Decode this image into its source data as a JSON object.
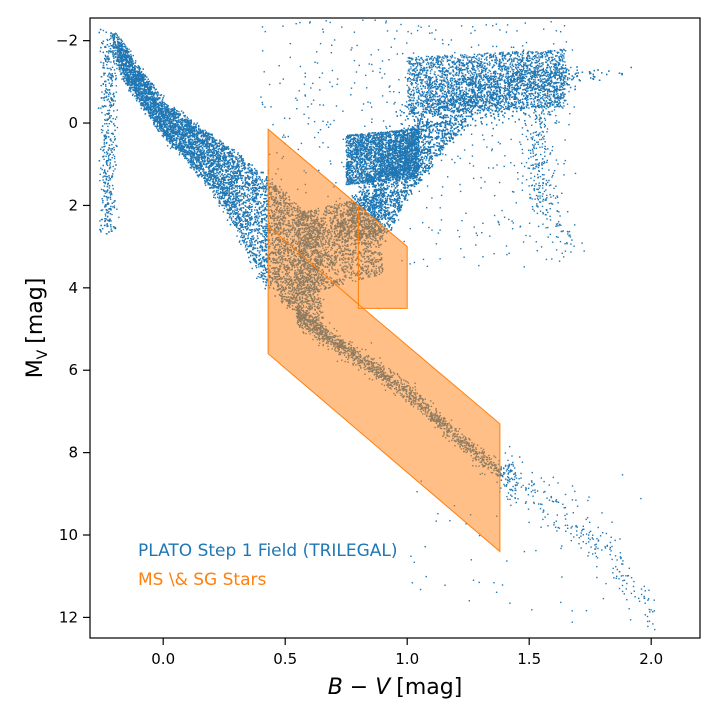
{
  "chart_data": {
    "type": "scatter",
    "xlabel": "B − V [mag]",
    "xlabel_italic": "B − V",
    "xlabel_unit": "[mag]",
    "ylabel_main": "M",
    "ylabel_sub": "V",
    "ylabel_unit": "[mag]",
    "xlim": [
      -0.3,
      2.2
    ],
    "ylim": [
      12.5,
      -2.55
    ],
    "y_inverted": true,
    "x_ticks": [
      0.0,
      0.5,
      1.0,
      1.5,
      2.0
    ],
    "x_tick_labels": [
      "0.0",
      "0.5",
      "1.0",
      "1.5",
      "2.0"
    ],
    "y_ticks": [
      -2,
      0,
      2,
      4,
      6,
      8,
      10,
      12
    ],
    "y_tick_labels": [
      "−2",
      "0",
      "2",
      "4",
      "6",
      "8",
      "10",
      "12"
    ],
    "grid": false,
    "legend_placement": "bottom-left",
    "colors": {
      "field": "#1f77b4",
      "selection": "#ff7f0e"
    },
    "legend": [
      {
        "label": "PLATO Step 1 Field (TRILEGAL)",
        "color": "#1f77b4"
      },
      {
        "label": "MS \\& SG Stars",
        "color": "#ff7f0e"
      }
    ],
    "selection_region": {
      "polygon": [
        [
          0.43,
          0.15
        ],
        [
          0.43,
          5.6
        ],
        [
          1.38,
          10.4
        ],
        [
          1.38,
          7.3
        ],
        [
          0.8,
          4.4
        ],
        [
          0.8,
          4.5
        ],
        [
          1.0,
          4.5
        ],
        [
          1.0,
          3.0
        ]
      ],
      "inner_lines": [
        [
          [
            0.43,
            2.5
          ],
          [
            0.8,
            4.4
          ]
        ],
        [
          [
            0.8,
            2.0
          ],
          [
            0.8,
            4.4
          ]
        ]
      ]
    },
    "field_population": {
      "main_sequence": [
        [
          -0.25,
          -2.4
        ],
        [
          -0.15,
          -1.0
        ],
        [
          0.0,
          0.3
        ],
        [
          0.1,
          0.9
        ],
        [
          0.2,
          1.6
        ],
        [
          0.3,
          2.6
        ],
        [
          0.4,
          3.8
        ],
        [
          0.5,
          4.4
        ],
        [
          0.6,
          4.9
        ],
        [
          0.8,
          5.7
        ],
        [
          1.0,
          6.5
        ],
        [
          1.2,
          7.6
        ],
        [
          1.38,
          8.5
        ],
        [
          1.5,
          9.0
        ],
        [
          1.7,
          9.8
        ],
        [
          1.9,
          11.0
        ],
        [
          2.03,
          12.1
        ]
      ],
      "turnoff_blue_edge": [
        [
          -0.2,
          -2.2
        ],
        [
          0.0,
          -0.5
        ],
        [
          0.2,
          0.3
        ],
        [
          0.4,
          1.2
        ],
        [
          0.55,
          2.0
        ],
        [
          0.7,
          2.6
        ],
        [
          0.85,
          2.7
        ]
      ],
      "giant_branch": [
        [
          0.75,
          2.8
        ],
        [
          0.85,
          1.8
        ],
        [
          1.0,
          0.6
        ],
        [
          1.2,
          -0.6
        ],
        [
          1.4,
          -1.1
        ],
        [
          1.6,
          -1.3
        ]
      ],
      "red_clump": {
        "x": [
          0.75,
          1.05
        ],
        "y": [
          0.3,
          1.5
        ]
      },
      "agb_tail": [
        [
          1.6,
          -1.0
        ],
        [
          1.52,
          0.5
        ],
        [
          1.55,
          1.8
        ],
        [
          1.68,
          3.2
        ]
      ]
    }
  }
}
